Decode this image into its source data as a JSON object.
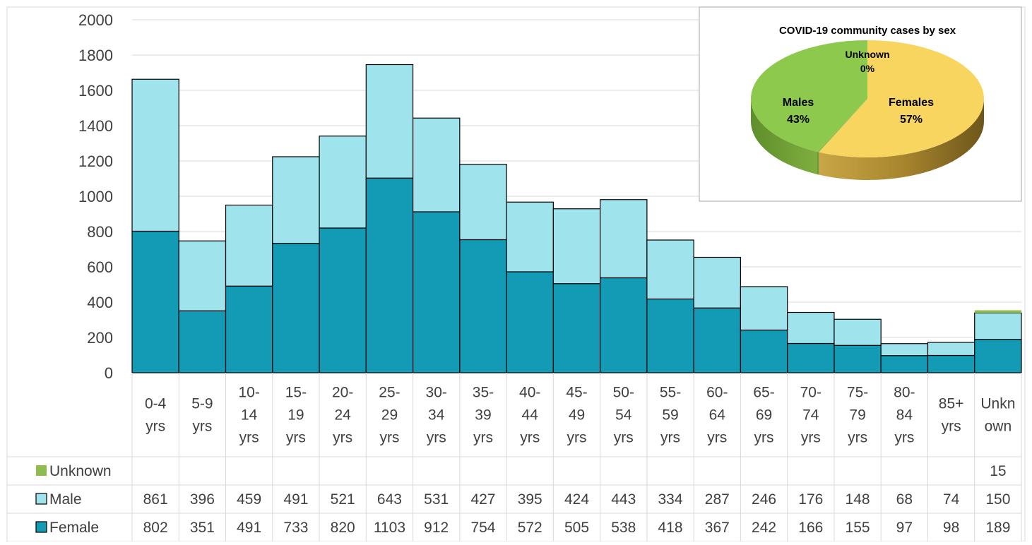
{
  "chart_data": [
    {
      "type": "bar",
      "stacked": true,
      "categories": [
        [
          "0-4",
          "yrs"
        ],
        [
          "5-9",
          "yrs"
        ],
        [
          "10-",
          "14",
          "yrs"
        ],
        [
          "15-",
          "19",
          "yrs"
        ],
        [
          "20-",
          "24",
          "yrs"
        ],
        [
          "25-",
          "29",
          "yrs"
        ],
        [
          "30-",
          "34",
          "yrs"
        ],
        [
          "35-",
          "39",
          "yrs"
        ],
        [
          "40-",
          "44",
          "yrs"
        ],
        [
          "45-",
          "49",
          "yrs"
        ],
        [
          "50-",
          "54",
          "yrs"
        ],
        [
          "55-",
          "59",
          "yrs"
        ],
        [
          "60-",
          "64",
          "yrs"
        ],
        [
          "65-",
          "69",
          "yrs"
        ],
        [
          "70-",
          "74",
          "yrs"
        ],
        [
          "75-",
          "79",
          "yrs"
        ],
        [
          "80-",
          "84",
          "yrs"
        ],
        [
          "85+",
          "yrs"
        ],
        [
          "Unkn",
          "own"
        ]
      ],
      "series": [
        {
          "name": "Female",
          "color": "#139ab5",
          "values": [
            802,
            351,
            491,
            733,
            820,
            1103,
            912,
            754,
            572,
            505,
            538,
            418,
            367,
            242,
            166,
            155,
            97,
            98,
            189
          ]
        },
        {
          "name": "Male",
          "color": "#9fe3ec",
          "values": [
            861,
            396,
            459,
            491,
            521,
            643,
            531,
            427,
            395,
            424,
            443,
            334,
            287,
            246,
            176,
            148,
            68,
            74,
            150
          ]
        },
        {
          "name": "Unknown",
          "color": "#8fbc4e",
          "values": [
            null,
            null,
            null,
            null,
            null,
            null,
            null,
            null,
            null,
            null,
            null,
            null,
            null,
            null,
            null,
            null,
            null,
            null,
            15
          ]
        }
      ],
      "table_rows_order": [
        "Unknown",
        "Male",
        "Female"
      ],
      "ylim": [
        0,
        2000
      ],
      "yticks": [
        0,
        200,
        400,
        600,
        800,
        1000,
        1200,
        1400,
        1600,
        1800,
        2000
      ],
      "grid": true,
      "data_table": true
    },
    {
      "type": "pie",
      "title": "COVID-19 community cases by sex",
      "slices": [
        {
          "name": "Females",
          "label": "Females",
          "pct_label": "57%",
          "value": 57,
          "color": "#f8d55e"
        },
        {
          "name": "Unknown",
          "label": "Unknown",
          "pct_label": "0%",
          "value": 0.3,
          "color": "#8fbc4e"
        },
        {
          "name": "Males",
          "label": "Males",
          "pct_label": "43%",
          "value": 43,
          "color": "#8dc94c"
        }
      ],
      "style": "3d"
    }
  ]
}
